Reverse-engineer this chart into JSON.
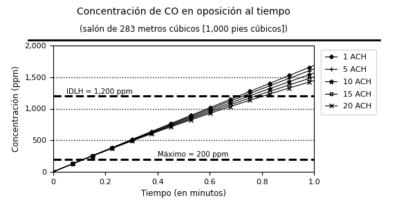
{
  "title": "Concentración de CO en oposición al tiempo",
  "subtitle": "(salón de 283 metros cúbicos [1,000 pies cúbicos])",
  "xlabel": "Tiempo (en minutos)",
  "ylabel": "Concentración (ppm)",
  "xlim": [
    0,
    1
  ],
  "ylim": [
    0,
    2000
  ],
  "xticks": [
    0,
    0.2,
    0.4,
    0.6,
    0.8,
    1.0
  ],
  "yticks": [
    0,
    500,
    1000,
    1500,
    2000
  ],
  "ytick_labels": [
    "0",
    "500",
    "1,000",
    "1,500",
    "2,000"
  ],
  "idlh_value": 1200,
  "idlh_label": "IDLH = 1,200 ppm",
  "maximo_value": 200,
  "maximo_label": "Máximo = 200 ppm",
  "dotted_lines": [
    500,
    1000,
    1500
  ],
  "series": [
    {
      "label": "1 ACH",
      "ach": 1,
      "marker": "D",
      "markersize": 3
    },
    {
      "label": "5 ACH",
      "ach": 5,
      "marker": "+",
      "markersize": 5
    },
    {
      "label": "10 ACH",
      "ach": 10,
      "marker": "*",
      "markersize": 5
    },
    {
      "label": "15 ACH",
      "ach": 15,
      "marker": "s",
      "markersize": 3
    },
    {
      "label": "20 ACH",
      "ach": 20,
      "marker": "x",
      "markersize": 5
    }
  ],
  "G_over_V": 1700,
  "title_fontsize": 10,
  "subtitle_fontsize": 8.5,
  "axis_label_fontsize": 8.5,
  "tick_fontsize": 8,
  "legend_fontsize": 8
}
